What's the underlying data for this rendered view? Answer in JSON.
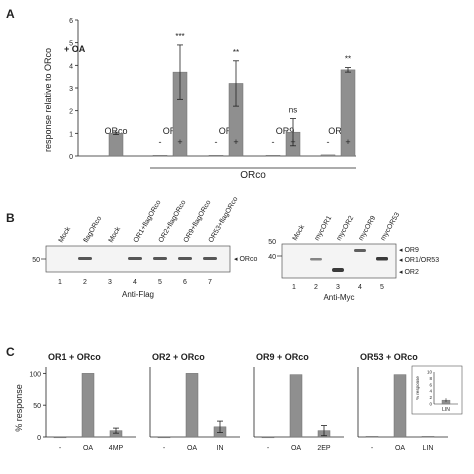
{
  "panel_labels": {
    "a": "A",
    "b": "B",
    "c": "C"
  },
  "colors": {
    "bar": "#8f8f8f",
    "bar_stroke": "#6e6e6e",
    "ink": "#222222",
    "blot_bg": "#f4f4f4",
    "band": "#3a3a3a"
  },
  "panel_a": {
    "treatment_label": "+ OA",
    "group_label": "ORco",
    "chart_data": {
      "type": "bar",
      "ylabel": "response relative to ORco",
      "ylim": [
        0,
        6
      ],
      "yticks": [
        "0",
        "1",
        "2",
        "3",
        "4",
        "5",
        "6"
      ],
      "groups": [
        {
          "name": "ORco",
          "bars": [
            {
              "sign": "",
              "value": 1.0,
              "err": 0.05
            }
          ]
        },
        {
          "name": "OR1",
          "bars": [
            {
              "sign": "-",
              "value": 0.03,
              "err": 0
            },
            {
              "sign": "+",
              "value": 3.7,
              "err": 1.2
            }
          ],
          "sig": "***"
        },
        {
          "name": "OR2",
          "bars": [
            {
              "sign": "-",
              "value": 0.03,
              "err": 0
            },
            {
              "sign": "+",
              "value": 3.2,
              "err": 1.0
            }
          ],
          "sig": "**"
        },
        {
          "name": "OR9",
          "bars": [
            {
              "sign": "-",
              "value": 0.03,
              "err": 0
            },
            {
              "sign": "+",
              "value": 1.05,
              "err": 0.6
            }
          ],
          "sig": "ns"
        },
        {
          "name": "OR53",
          "bars": [
            {
              "sign": "-",
              "value": 0.05,
              "err": 0
            },
            {
              "sign": "+",
              "value": 3.8,
              "err": 0.1
            }
          ],
          "sig": "**"
        }
      ]
    }
  },
  "panel_b": {
    "left_blot": {
      "lanes": [
        "Mock",
        "flagORco",
        "Mock",
        "OR1+flagORco",
        "OR2+flagORco",
        "OR9+flagORco",
        "OR53+flagORco"
      ],
      "lane_numbers": [
        "1",
        "2",
        "3",
        "4",
        "5",
        "6",
        "7"
      ],
      "marker": "50",
      "band_label": "◂ ORco",
      "antibody": "Anti-Flag"
    },
    "right_blot": {
      "lanes": [
        "Mock",
        "mycOR1",
        "mycOR2",
        "mycOR9",
        "mycOR53"
      ],
      "lane_numbers": [
        "1",
        "2",
        "3",
        "4",
        "5"
      ],
      "markers": [
        "50",
        "40"
      ],
      "band_labels": [
        "◂ OR9",
        "◂ OR1/OR53",
        "◂ OR2"
      ],
      "antibody": "Anti-Myc"
    }
  },
  "panel_c": {
    "ylabel": "% response",
    "yticks": [
      "0",
      "50",
      "100"
    ],
    "chart_data": [
      {
        "type": "bar",
        "title": "OR1 + ORco",
        "categories": [
          "-",
          "OA",
          "4MP"
        ],
        "values": [
          0,
          100,
          10
        ],
        "errors": [
          0,
          0,
          4
        ]
      },
      {
        "type": "bar",
        "title": "OR2 + ORco",
        "categories": [
          "-",
          "OA",
          "IN"
        ],
        "values": [
          0,
          100,
          16
        ],
        "errors": [
          0,
          0,
          9
        ]
      },
      {
        "type": "bar",
        "title": "OR9 + ORco",
        "categories": [
          "-",
          "OA",
          "2EP"
        ],
        "values": [
          0,
          98,
          10
        ],
        "errors": [
          0,
          0,
          8
        ]
      },
      {
        "type": "bar",
        "title": "OR53 + ORco",
        "categories": [
          "-",
          "OA",
          "LIN"
        ],
        "values": [
          1,
          98,
          1
        ],
        "errors": [
          0,
          0,
          0
        ]
      }
    ],
    "inset": {
      "ylabel": "% response",
      "yticks": [
        "0",
        "2",
        "4",
        "6",
        "8",
        "10"
      ],
      "categories": [
        "LIN"
      ],
      "values": [
        1.2
      ],
      "errors": [
        0.6
      ]
    }
  }
}
